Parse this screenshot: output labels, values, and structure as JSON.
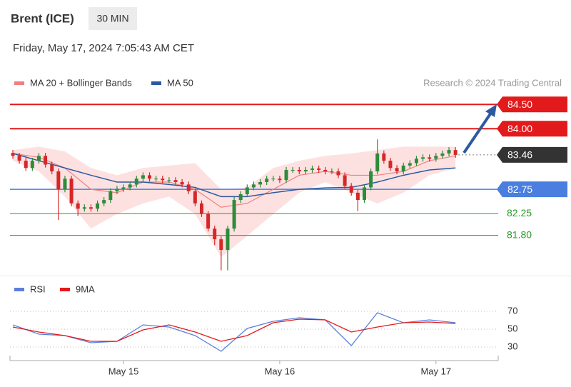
{
  "header": {
    "title": "Brent (ICE)",
    "interval": "30 MIN",
    "timestamp": "Friday, May 17, 2024 7:05:43 AM CET"
  },
  "chart_data": [
    {
      "type": "candlestick",
      "source": "Research © 2024 Trading Central",
      "xlim": [
        0,
        75
      ],
      "ylim": [
        81.0,
        84.74
      ],
      "up_color": "#2e8b3a",
      "down_color": "#d62728",
      "open": [
        83.5,
        83.44,
        83.34,
        83.19,
        83.34,
        83.44,
        83.26,
        83.12,
        82.75,
        82.97,
        82.46,
        82.35,
        82.38,
        82.35,
        82.46,
        82.53,
        82.71,
        82.76,
        82.79,
        82.85,
        82.97,
        83.04,
        82.97,
        82.97,
        82.94,
        82.94,
        82.9,
        82.85,
        82.71,
        82.46,
        82.24,
        81.94,
        81.72,
        81.5,
        81.94,
        82.53,
        82.65,
        82.79,
        82.85,
        82.9,
        82.97,
        82.97,
        82.94,
        83.15,
        83.15,
        83.12,
        83.15,
        83.18,
        83.15,
        83.12,
        83.12,
        83.04,
        82.82,
        82.68,
        82.53,
        82.79,
        83.12,
        83.49,
        83.34,
        83.19,
        83.12,
        83.24,
        83.29,
        83.38,
        83.41,
        83.38,
        83.44,
        83.49,
        83.56
      ],
      "high": [
        83.56,
        83.5,
        83.4,
        83.4,
        83.5,
        83.5,
        83.32,
        83.18,
        83.03,
        83.03,
        82.52,
        82.44,
        82.44,
        82.52,
        82.59,
        82.77,
        82.82,
        82.85,
        82.91,
        83.03,
        83.1,
        83.1,
        83.03,
        83.03,
        83.0,
        83.0,
        82.96,
        82.91,
        82.77,
        82.52,
        82.3,
        82.0,
        81.78,
        82.0,
        82.59,
        82.71,
        82.85,
        82.91,
        82.96,
        83.03,
        83.03,
        83.03,
        83.21,
        83.21,
        83.21,
        83.21,
        83.24,
        83.24,
        83.21,
        83.18,
        83.18,
        83.1,
        82.88,
        82.74,
        82.85,
        83.18,
        83.78,
        83.55,
        83.4,
        83.25,
        83.3,
        83.35,
        83.44,
        83.47,
        83.47,
        83.5,
        83.55,
        83.62,
        83.62
      ],
      "low": [
        83.38,
        83.28,
        83.13,
        83.13,
        83.28,
        83.2,
        83.06,
        82.12,
        82.69,
        82.4,
        82.2,
        82.29,
        82.29,
        82.29,
        82.4,
        82.47,
        82.65,
        82.7,
        82.73,
        82.79,
        82.91,
        82.91,
        82.91,
        82.88,
        82.88,
        82.84,
        82.79,
        82.65,
        82.4,
        82.18,
        81.88,
        81.6,
        81.08,
        81.08,
        81.88,
        82.47,
        82.59,
        82.73,
        82.79,
        82.84,
        82.91,
        82.88,
        82.88,
        83.09,
        83.06,
        83.06,
        83.09,
        83.09,
        83.06,
        83.06,
        82.98,
        82.76,
        82.62,
        82.3,
        82.47,
        82.73,
        83.06,
        83.28,
        83.13,
        83.06,
        83.06,
        83.18,
        83.23,
        83.32,
        83.32,
        83.32,
        83.38,
        83.43,
        83.4
      ],
      "close": [
        83.44,
        83.34,
        83.19,
        83.34,
        83.44,
        83.26,
        83.12,
        82.75,
        82.97,
        82.46,
        82.35,
        82.38,
        82.35,
        82.46,
        82.53,
        82.71,
        82.76,
        82.79,
        82.85,
        82.97,
        83.04,
        82.97,
        82.97,
        82.94,
        82.94,
        82.9,
        82.85,
        82.71,
        82.46,
        82.24,
        81.94,
        81.72,
        81.5,
        81.94,
        82.53,
        82.65,
        82.79,
        82.85,
        82.9,
        82.97,
        82.97,
        82.94,
        83.15,
        83.15,
        83.12,
        83.15,
        83.18,
        83.15,
        83.12,
        83.12,
        83.04,
        82.82,
        82.68,
        82.53,
        82.79,
        83.12,
        83.49,
        83.34,
        83.19,
        83.12,
        83.24,
        83.29,
        83.38,
        83.41,
        83.38,
        83.44,
        83.49,
        83.56,
        83.46
      ],
      "series_x": [
        0,
        4,
        8,
        12,
        16,
        20,
        24,
        28,
        32,
        36,
        40,
        44,
        48,
        52,
        56,
        60,
        64,
        68
      ],
      "series": [
        {
          "name": "MA 20 + Bollinger Bands",
          "color": "#f07f7f",
          "band_color": "#fde1e1",
          "values": [
            83.49,
            83.41,
            83.19,
            82.75,
            82.68,
            82.9,
            82.9,
            82.75,
            82.38,
            82.46,
            82.75,
            83.04,
            83.12,
            83.04,
            83.04,
            83.12,
            83.34,
            83.44
          ],
          "upper": [
            83.56,
            83.63,
            83.53,
            83.19,
            83.04,
            83.19,
            83.24,
            83.29,
            82.75,
            82.79,
            83.19,
            83.34,
            83.44,
            83.49,
            83.56,
            83.63,
            83.63,
            83.63
          ],
          "lower": [
            83.34,
            83.12,
            82.6,
            81.94,
            82.24,
            82.46,
            82.6,
            82.24,
            81.35,
            81.79,
            82.24,
            82.68,
            82.9,
            82.68,
            82.46,
            82.68,
            83.04,
            83.19
          ]
        },
        {
          "name": "MA 50",
          "color": "#2c5aa0",
          "values": [
            83.49,
            83.34,
            83.19,
            83.04,
            82.9,
            82.9,
            82.85,
            82.79,
            82.6,
            82.6,
            82.68,
            82.75,
            82.78,
            82.79,
            82.9,
            83.04,
            83.15,
            83.19
          ]
        }
      ],
      "levels": [
        {
          "value": 84.5,
          "label": "84.50",
          "color": "#e31a1c",
          "style": "box"
        },
        {
          "value": 84,
          "label": "84.00",
          "color": "#e31a1c",
          "style": "box"
        },
        {
          "value": 83.46,
          "color": "#333333",
          "style": "last"
        },
        {
          "value": 82.75,
          "color": "#4a7fe0",
          "style": "box"
        },
        {
          "value": 82.25,
          "color": "#2a9a2a",
          "style": "text"
        },
        {
          "value": 81.8,
          "label": "81.80",
          "color": "#2a9a2a",
          "style": "text"
        }
      ]
    },
    {
      "type": "line",
      "xlim": [
        0,
        75
      ],
      "ylim": [
        20,
        80
      ],
      "yticks": [
        30,
        50,
        70
      ],
      "xticks": [
        {
          "value": 17,
          "label": "May 15"
        },
        {
          "value": 41,
          "label": "May 16"
        },
        {
          "value": 65,
          "label": "May 17"
        }
      ],
      "x": [
        0,
        4,
        8,
        12,
        16,
        20,
        24,
        28,
        32,
        36,
        40,
        44,
        48,
        52,
        56,
        60,
        64,
        68
      ],
      "series": [
        {
          "name": "RSI",
          "color": "#5b7fde",
          "values": [
            54.8,
            44.4,
            42.8,
            34.8,
            36.4,
            54.8,
            52.4,
            42.8,
            25.2,
            50.8,
            58.8,
            62.8,
            60.4,
            31.6,
            68.4,
            57.2,
            60.4,
            57.2
          ]
        },
        {
          "name": "9MA",
          "color": "#e31a1c",
          "values": [
            52.4,
            46.8,
            42.8,
            36.4,
            36.4,
            49.2,
            54.8,
            46.8,
            36.4,
            42.8,
            57.2,
            61.2,
            60.4,
            46.8,
            52.4,
            57.2,
            58,
            56.4
          ]
        }
      ]
    }
  ]
}
